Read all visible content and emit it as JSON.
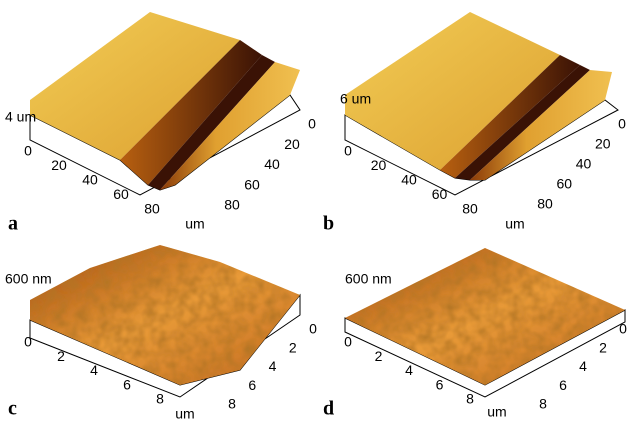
{
  "panels": [
    {
      "letter": "a",
      "z_label": "4 um",
      "left_ticks": [
        0,
        20,
        40,
        60,
        80
      ],
      "right_ticks": [
        0,
        20,
        40,
        60,
        80
      ],
      "unit": "um"
    },
    {
      "letter": "b",
      "z_label": "6 um",
      "left_ticks": [
        0,
        20,
        40,
        60,
        80
      ],
      "right_ticks": [
        0,
        20,
        40,
        60,
        80
      ],
      "unit": "um"
    },
    {
      "letter": "c",
      "z_label": "600 nm",
      "left_ticks": [
        0,
        2,
        4,
        6,
        8
      ],
      "right_ticks": [
        0,
        2,
        4,
        6,
        8
      ],
      "unit": "um"
    },
    {
      "letter": "d",
      "z_label": "600 nm",
      "left_ticks": [
        0,
        2,
        4,
        6,
        8
      ],
      "right_ticks": [
        0,
        2,
        4,
        6,
        8
      ],
      "unit": "um"
    }
  ]
}
